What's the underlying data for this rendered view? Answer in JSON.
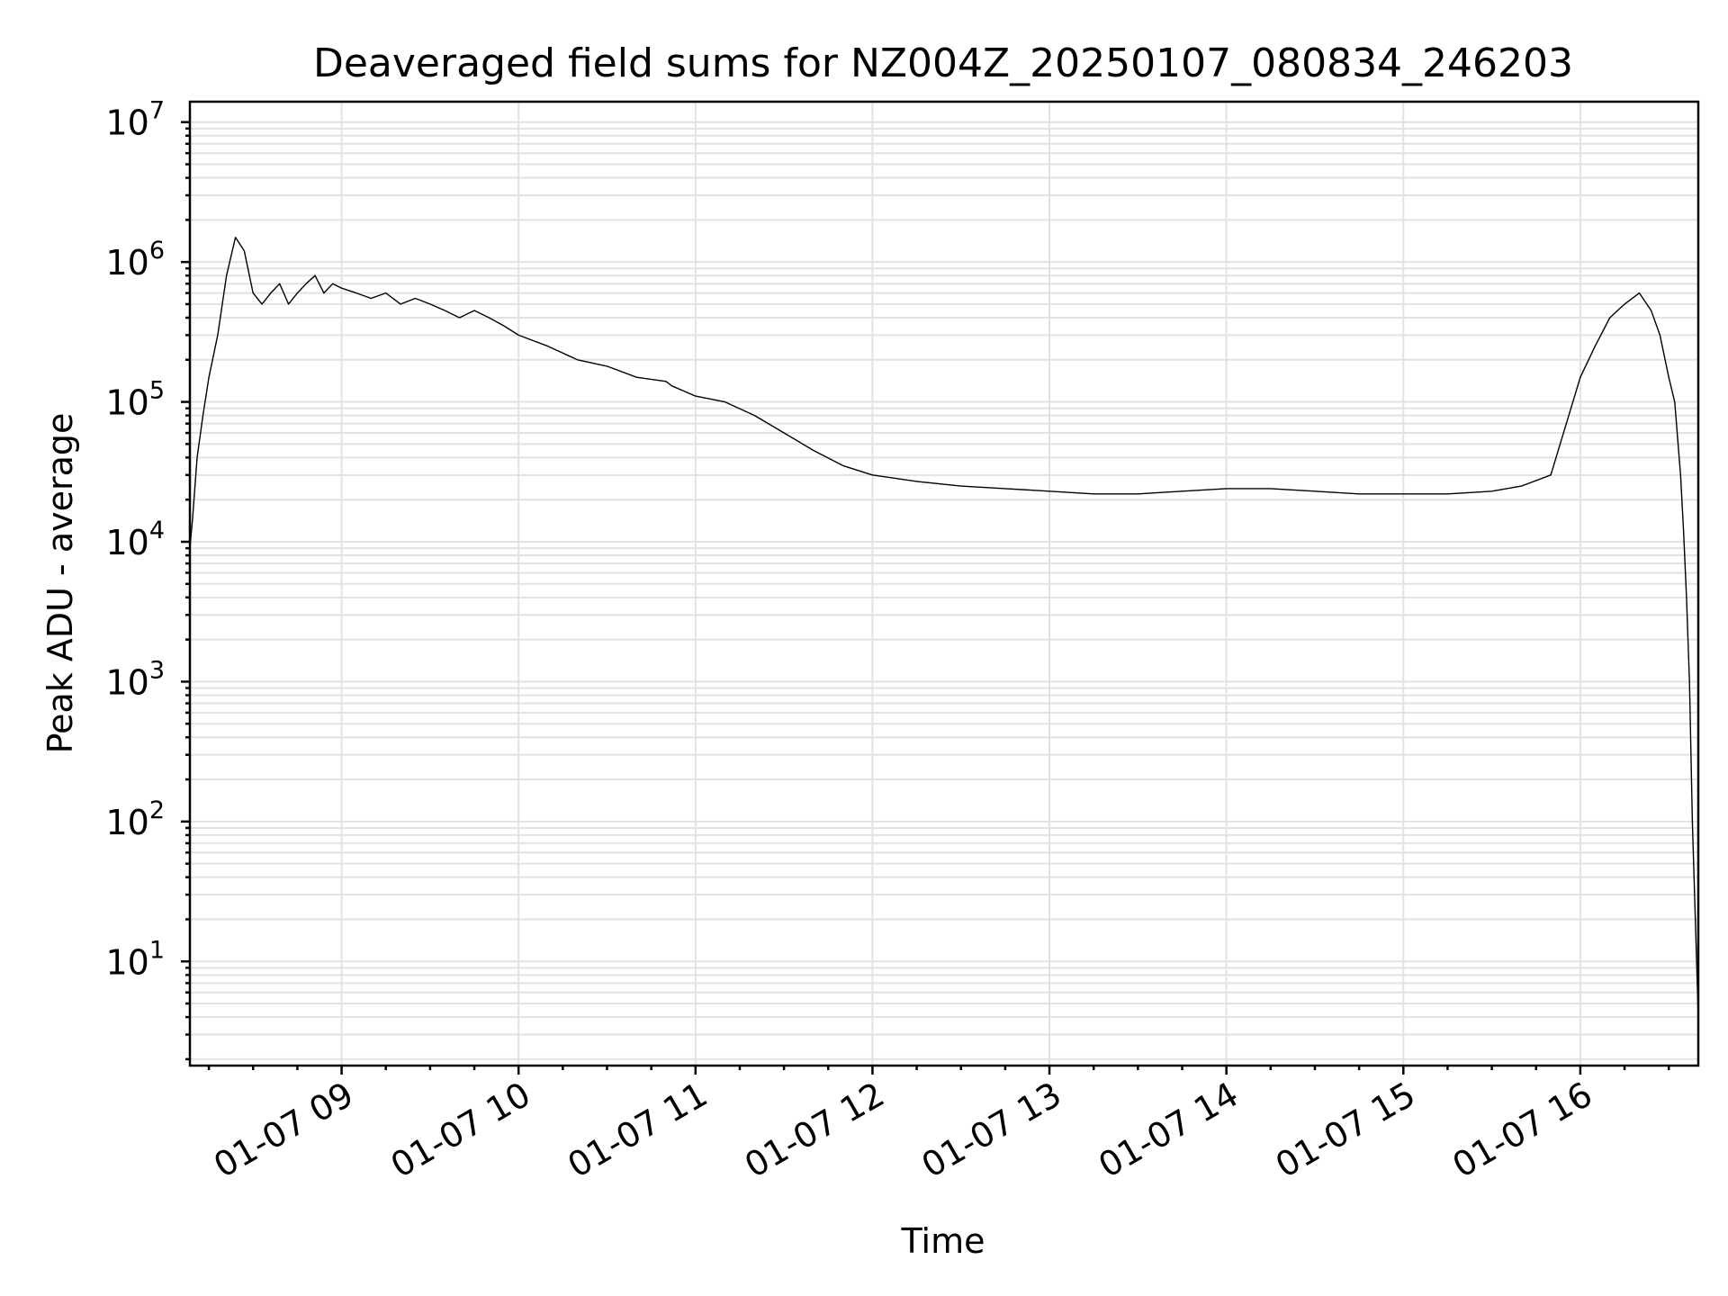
{
  "chart_data": {
    "type": "line",
    "title": "Deaveraged field sums for NZ004Z_20250107_080834_246203",
    "xlabel": "Time",
    "ylabel": "Peak ADU - average",
    "yscale": "log",
    "ylim": [
      1.8,
      14000000
    ],
    "xlim": [
      "2025-01-07 08:08:34",
      "2025-01-07 16:40:00"
    ],
    "grid": "on (major and minor, light gray)",
    "x_ticks": [
      "01-07 09",
      "01-07 10",
      "01-07 11",
      "01-07 12",
      "01-07 13",
      "01-07 14",
      "01-07 15",
      "01-07 16"
    ],
    "y_ticks": [
      {
        "base": "10",
        "exp": "1",
        "value": 10
      },
      {
        "base": "10",
        "exp": "2",
        "value": 100
      },
      {
        "base": "10",
        "exp": "3",
        "value": 1000
      },
      {
        "base": "10",
        "exp": "4",
        "value": 10000
      },
      {
        "base": "10",
        "exp": "5",
        "value": 100000
      },
      {
        "base": "10",
        "exp": "6",
        "value": 1000000
      },
      {
        "base": "10",
        "exp": "7",
        "value": 10000000
      }
    ],
    "series": [
      {
        "color": "#000000",
        "x": [
          "2025-01-07 08:08:34",
          "2025-01-07 08:09:30",
          "2025-01-07 08:11:00",
          "2025-01-07 08:13:00",
          "2025-01-07 08:15:00",
          "2025-01-07 08:18:00",
          "2025-01-07 08:21:00",
          "2025-01-07 08:24:00",
          "2025-01-07 08:27:00",
          "2025-01-07 08:30:00",
          "2025-01-07 08:33:00",
          "2025-01-07 08:36:00",
          "2025-01-07 08:39:00",
          "2025-01-07 08:42:00",
          "2025-01-07 08:45:00",
          "2025-01-07 08:48:00",
          "2025-01-07 08:51:00",
          "2025-01-07 08:54:00",
          "2025-01-07 08:57:00",
          "2025-01-07 09:00:00",
          "2025-01-07 09:05:00",
          "2025-01-07 09:10:00",
          "2025-01-07 09:15:00",
          "2025-01-07 09:20:00",
          "2025-01-07 09:25:00",
          "2025-01-07 09:30:00",
          "2025-01-07 09:35:00",
          "2025-01-07 09:40:00",
          "2025-01-07 09:45:00",
          "2025-01-07 09:50:00",
          "2025-01-07 09:55:00",
          "2025-01-07 10:00:00",
          "2025-01-07 10:10:00",
          "2025-01-07 10:20:00",
          "2025-01-07 10:30:00",
          "2025-01-07 10:40:00",
          "2025-01-07 10:50:00",
          "2025-01-07 10:52:00",
          "2025-01-07 11:00:00",
          "2025-01-07 11:10:00",
          "2025-01-07 11:20:00",
          "2025-01-07 11:30:00",
          "2025-01-07 11:40:00",
          "2025-01-07 11:50:00",
          "2025-01-07 12:00:00",
          "2025-01-07 12:15:00",
          "2025-01-07 12:30:00",
          "2025-01-07 12:45:00",
          "2025-01-07 13:00:00",
          "2025-01-07 13:15:00",
          "2025-01-07 13:30:00",
          "2025-01-07 13:45:00",
          "2025-01-07 14:00:00",
          "2025-01-07 14:15:00",
          "2025-01-07 14:30:00",
          "2025-01-07 14:45:00",
          "2025-01-07 15:00:00",
          "2025-01-07 15:15:00",
          "2025-01-07 15:30:00",
          "2025-01-07 15:40:00",
          "2025-01-07 15:50:00",
          "2025-01-07 16:00:00",
          "2025-01-07 16:05:00",
          "2025-01-07 16:10:00",
          "2025-01-07 16:15:00",
          "2025-01-07 16:20:00",
          "2025-01-07 16:24:00",
          "2025-01-07 16:27:00",
          "2025-01-07 16:30:00",
          "2025-01-07 16:32:00",
          "2025-01-07 16:34:00",
          "2025-01-07 16:35:00",
          "2025-01-07 16:36:00",
          "2025-01-07 16:37:00",
          "2025-01-07 16:38:00",
          "2025-01-07 16:40:00"
        ],
        "y": [
          9000,
          15000,
          40000,
          80000,
          150000,
          300000,
          800000,
          1500000,
          1200000,
          600000,
          500000,
          600000,
          700000,
          500000,
          600000,
          700000,
          800000,
          600000,
          700000,
          650000,
          600000,
          550000,
          600000,
          500000,
          550000,
          500000,
          450000,
          400000,
          450000,
          400000,
          350000,
          300000,
          250000,
          200000,
          180000,
          150000,
          140000,
          130000,
          110000,
          100000,
          80000,
          60000,
          45000,
          35000,
          30000,
          27000,
          25000,
          24000,
          23000,
          22000,
          22000,
          23000,
          24000,
          24000,
          23000,
          22000,
          22000,
          22000,
          23000,
          25000,
          30000,
          150000,
          250000,
          400000,
          500000,
          600000,
          450000,
          300000,
          150000,
          100000,
          30000,
          12000,
          4000,
          1000,
          100,
          4
        ]
      }
    ]
  }
}
